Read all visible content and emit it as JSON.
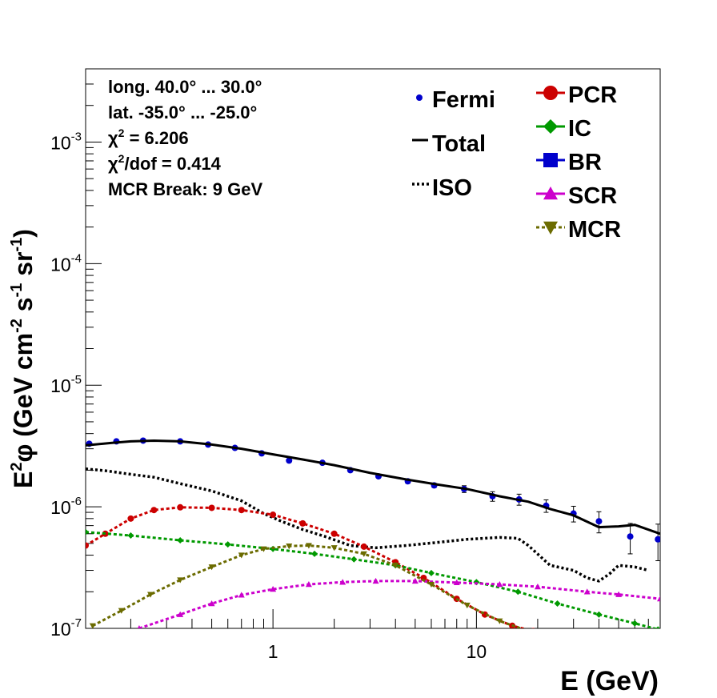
{
  "chart_data": {
    "type": "line",
    "xlabel": "E (GeV)",
    "ylabel_parts": [
      "E",
      "2",
      "φ (GeV cm",
      "-2",
      " s",
      "-1",
      " sr",
      "-1",
      ")"
    ],
    "xscale": "log",
    "yscale": "log",
    "xlim": [
      0.12,
      80
    ],
    "ylim": [
      1e-07,
      0.004
    ],
    "x_ticks": [
      {
        "value": 1,
        "label": "1"
      },
      {
        "value": 10,
        "label": "10"
      }
    ],
    "y_ticks": [
      {
        "value": 1e-07,
        "base": "10",
        "exp": "-7"
      },
      {
        "value": 1e-06,
        "base": "10",
        "exp": "-6"
      },
      {
        "value": 1e-05,
        "base": "10",
        "exp": "-5"
      },
      {
        "value": 0.0001,
        "base": "10",
        "exp": "-4"
      },
      {
        "value": 0.001,
        "base": "10",
        "exp": "-3"
      }
    ],
    "annotations": [
      {
        "parts": [
          "long. 40.0° ... 30.0°"
        ]
      },
      {
        "parts": [
          "lat. -35.0° ... -25.0°"
        ]
      },
      {
        "parts": [
          "χ",
          "2",
          " = 6.206"
        ]
      },
      {
        "parts": [
          "χ",
          "2",
          "/dof = 0.414"
        ]
      },
      {
        "parts": [
          "MCR Break:  9 GeV"
        ]
      }
    ],
    "legend_left": [
      {
        "name": "Fermi",
        "marker": "dot"
      },
      {
        "name": "Total",
        "marker": "solid-line"
      },
      {
        "name": "ISO",
        "marker": "dotted-line"
      }
    ],
    "legend_right": [
      {
        "name": "PCR",
        "marker": "circle"
      },
      {
        "name": "IC",
        "marker": "diamond"
      },
      {
        "name": "BR",
        "marker": "square"
      },
      {
        "name": "SCR",
        "marker": "triangle-up"
      },
      {
        "name": "MCR",
        "marker": "triangle-down"
      }
    ],
    "series": [
      {
        "name": "Fermi",
        "color": "#0000cc",
        "kind": "points",
        "x": [
          0.125,
          0.17,
          0.23,
          0.35,
          0.48,
          0.65,
          0.88,
          1.2,
          1.75,
          2.4,
          3.3,
          4.6,
          6.2,
          8.7,
          12,
          16.2,
          22,
          30,
          40,
          57,
          78
        ],
        "y": [
          3.3e-06,
          3.45e-06,
          3.5e-06,
          3.45e-06,
          3.25e-06,
          3.05e-06,
          2.75e-06,
          2.4e-06,
          2.3e-06,
          2e-06,
          1.78e-06,
          1.62e-06,
          1.5e-06,
          1.4e-06,
          1.22e-06,
          1.15e-06,
          1.02e-06,
          8.8e-07,
          7.6e-07,
          5.7e-07,
          5.4e-07
        ],
        "y_err": [
          6e-08,
          6e-08,
          6e-08,
          6e-08,
          6e-08,
          6e-08,
          6e-08,
          6e-08,
          6e-08,
          6e-08,
          6e-08,
          6e-08,
          6e-08,
          9e-08,
          1.1e-07,
          1.2e-07,
          1.2e-07,
          1.3e-07,
          1.5e-07,
          1.6e-07,
          1.8e-07
        ]
      },
      {
        "name": "Total",
        "color": "#000000",
        "kind": "solid",
        "x": [
          0.12,
          0.16,
          0.2,
          0.26,
          0.35,
          0.5,
          0.7,
          1.0,
          1.4,
          2.0,
          3.0,
          4.5,
          6.5,
          9.0,
          13,
          18,
          23,
          30,
          40,
          50,
          60,
          80
        ],
        "y": [
          3.2e-06,
          3.35e-06,
          3.45e-06,
          3.5e-06,
          3.45e-06,
          3.25e-06,
          3e-06,
          2.7e-06,
          2.45e-06,
          2.2e-06,
          1.9e-06,
          1.68e-06,
          1.52e-06,
          1.4e-06,
          1.22e-06,
          1.1e-06,
          9.6e-07,
          8.5e-07,
          6.8e-07,
          6.9e-07,
          7.1e-07,
          6e-07
        ]
      },
      {
        "name": "ISO",
        "color": "#000000",
        "kind": "dotted",
        "x": [
          0.12,
          0.15,
          0.2,
          0.26,
          0.35,
          0.5,
          0.7,
          0.9,
          1.1,
          1.4,
          1.8,
          2.4,
          3.2,
          4.5,
          6.5,
          9.0,
          13,
          16,
          18,
          23,
          30,
          35,
          40,
          45,
          50,
          60,
          70
        ],
        "y": [
          2.05e-06,
          1.98e-06,
          1.85e-06,
          1.75e-06,
          1.55e-06,
          1.35e-06,
          1.12e-06,
          8.8e-07,
          7.6e-07,
          6.5e-07,
          5.7e-07,
          4.8e-07,
          4.6e-07,
          4.8e-07,
          5.1e-07,
          5.4e-07,
          5.6e-07,
          5.5e-07,
          4.8e-07,
          3.3e-07,
          3e-07,
          2.6e-07,
          2.45e-07,
          2.8e-07,
          3.3e-07,
          3.2e-07,
          3e-07
        ]
      },
      {
        "name": "PCR",
        "color": "#cc0000",
        "kind": "marked",
        "marker": "circle",
        "x": [
          0.12,
          0.15,
          0.2,
          0.26,
          0.35,
          0.5,
          0.7,
          1.0,
          1.4,
          2.0,
          2.8,
          4.0,
          5.5,
          8.0,
          11,
          15,
          19
        ],
        "y": [
          4.8e-07,
          6e-07,
          8e-07,
          9.4e-07,
          9.9e-07,
          9.8e-07,
          9.4e-07,
          8.6e-07,
          7.3e-07,
          6e-07,
          4.7e-07,
          3.5e-07,
          2.6e-07,
          1.75e-07,
          1.3e-07,
          1.05e-07,
          9.5e-08
        ]
      },
      {
        "name": "IC",
        "color": "#009900",
        "kind": "marked",
        "marker": "diamond",
        "x": [
          0.12,
          0.2,
          0.35,
          0.6,
          1.0,
          1.6,
          2.5,
          4.0,
          6.0,
          10,
          16,
          25,
          40,
          60,
          78
        ],
        "y": [
          6.2e-07,
          5.8e-07,
          5.3e-07,
          4.9e-07,
          4.5e-07,
          4.1e-07,
          3.7e-07,
          3.3e-07,
          2.85e-07,
          2.4e-07,
          2e-07,
          1.6e-07,
          1.3e-07,
          1.1e-07,
          9.8e-08
        ]
      },
      {
        "name": "BR",
        "color": "#0000cc",
        "kind": "none",
        "marker": "square",
        "x": [],
        "y": []
      },
      {
        "name": "SCR",
        "color": "#cc00cc",
        "kind": "marked",
        "marker": "triangle-up",
        "x": [
          0.22,
          0.35,
          0.5,
          0.7,
          1.0,
          1.5,
          2.2,
          3.2,
          5.0,
          8.0,
          13,
          20,
          35,
          50,
          80
        ],
        "y": [
          1e-07,
          1.3e-07,
          1.6e-07,
          1.88e-07,
          2.1e-07,
          2.3e-07,
          2.4e-07,
          2.45e-07,
          2.45e-07,
          2.38e-07,
          2.3e-07,
          2.2e-07,
          2e-07,
          1.9e-07,
          1.75e-07
        ]
      },
      {
        "name": "MCR",
        "color": "#6b6b00",
        "kind": "marked",
        "marker": "triangle-down",
        "x": [
          0.13,
          0.18,
          0.25,
          0.35,
          0.5,
          0.7,
          0.9,
          1.2,
          1.5,
          2.0,
          2.8,
          4.0,
          6.0,
          9.0,
          13,
          18
        ],
        "y": [
          1.05e-07,
          1.4e-07,
          1.9e-07,
          2.5e-07,
          3.2e-07,
          4e-07,
          4.5e-07,
          4.75e-07,
          4.8e-07,
          4.6e-07,
          4.1e-07,
          3.3e-07,
          2.3e-07,
          1.55e-07,
          1.15e-07,
          9.5e-08
        ]
      }
    ]
  }
}
